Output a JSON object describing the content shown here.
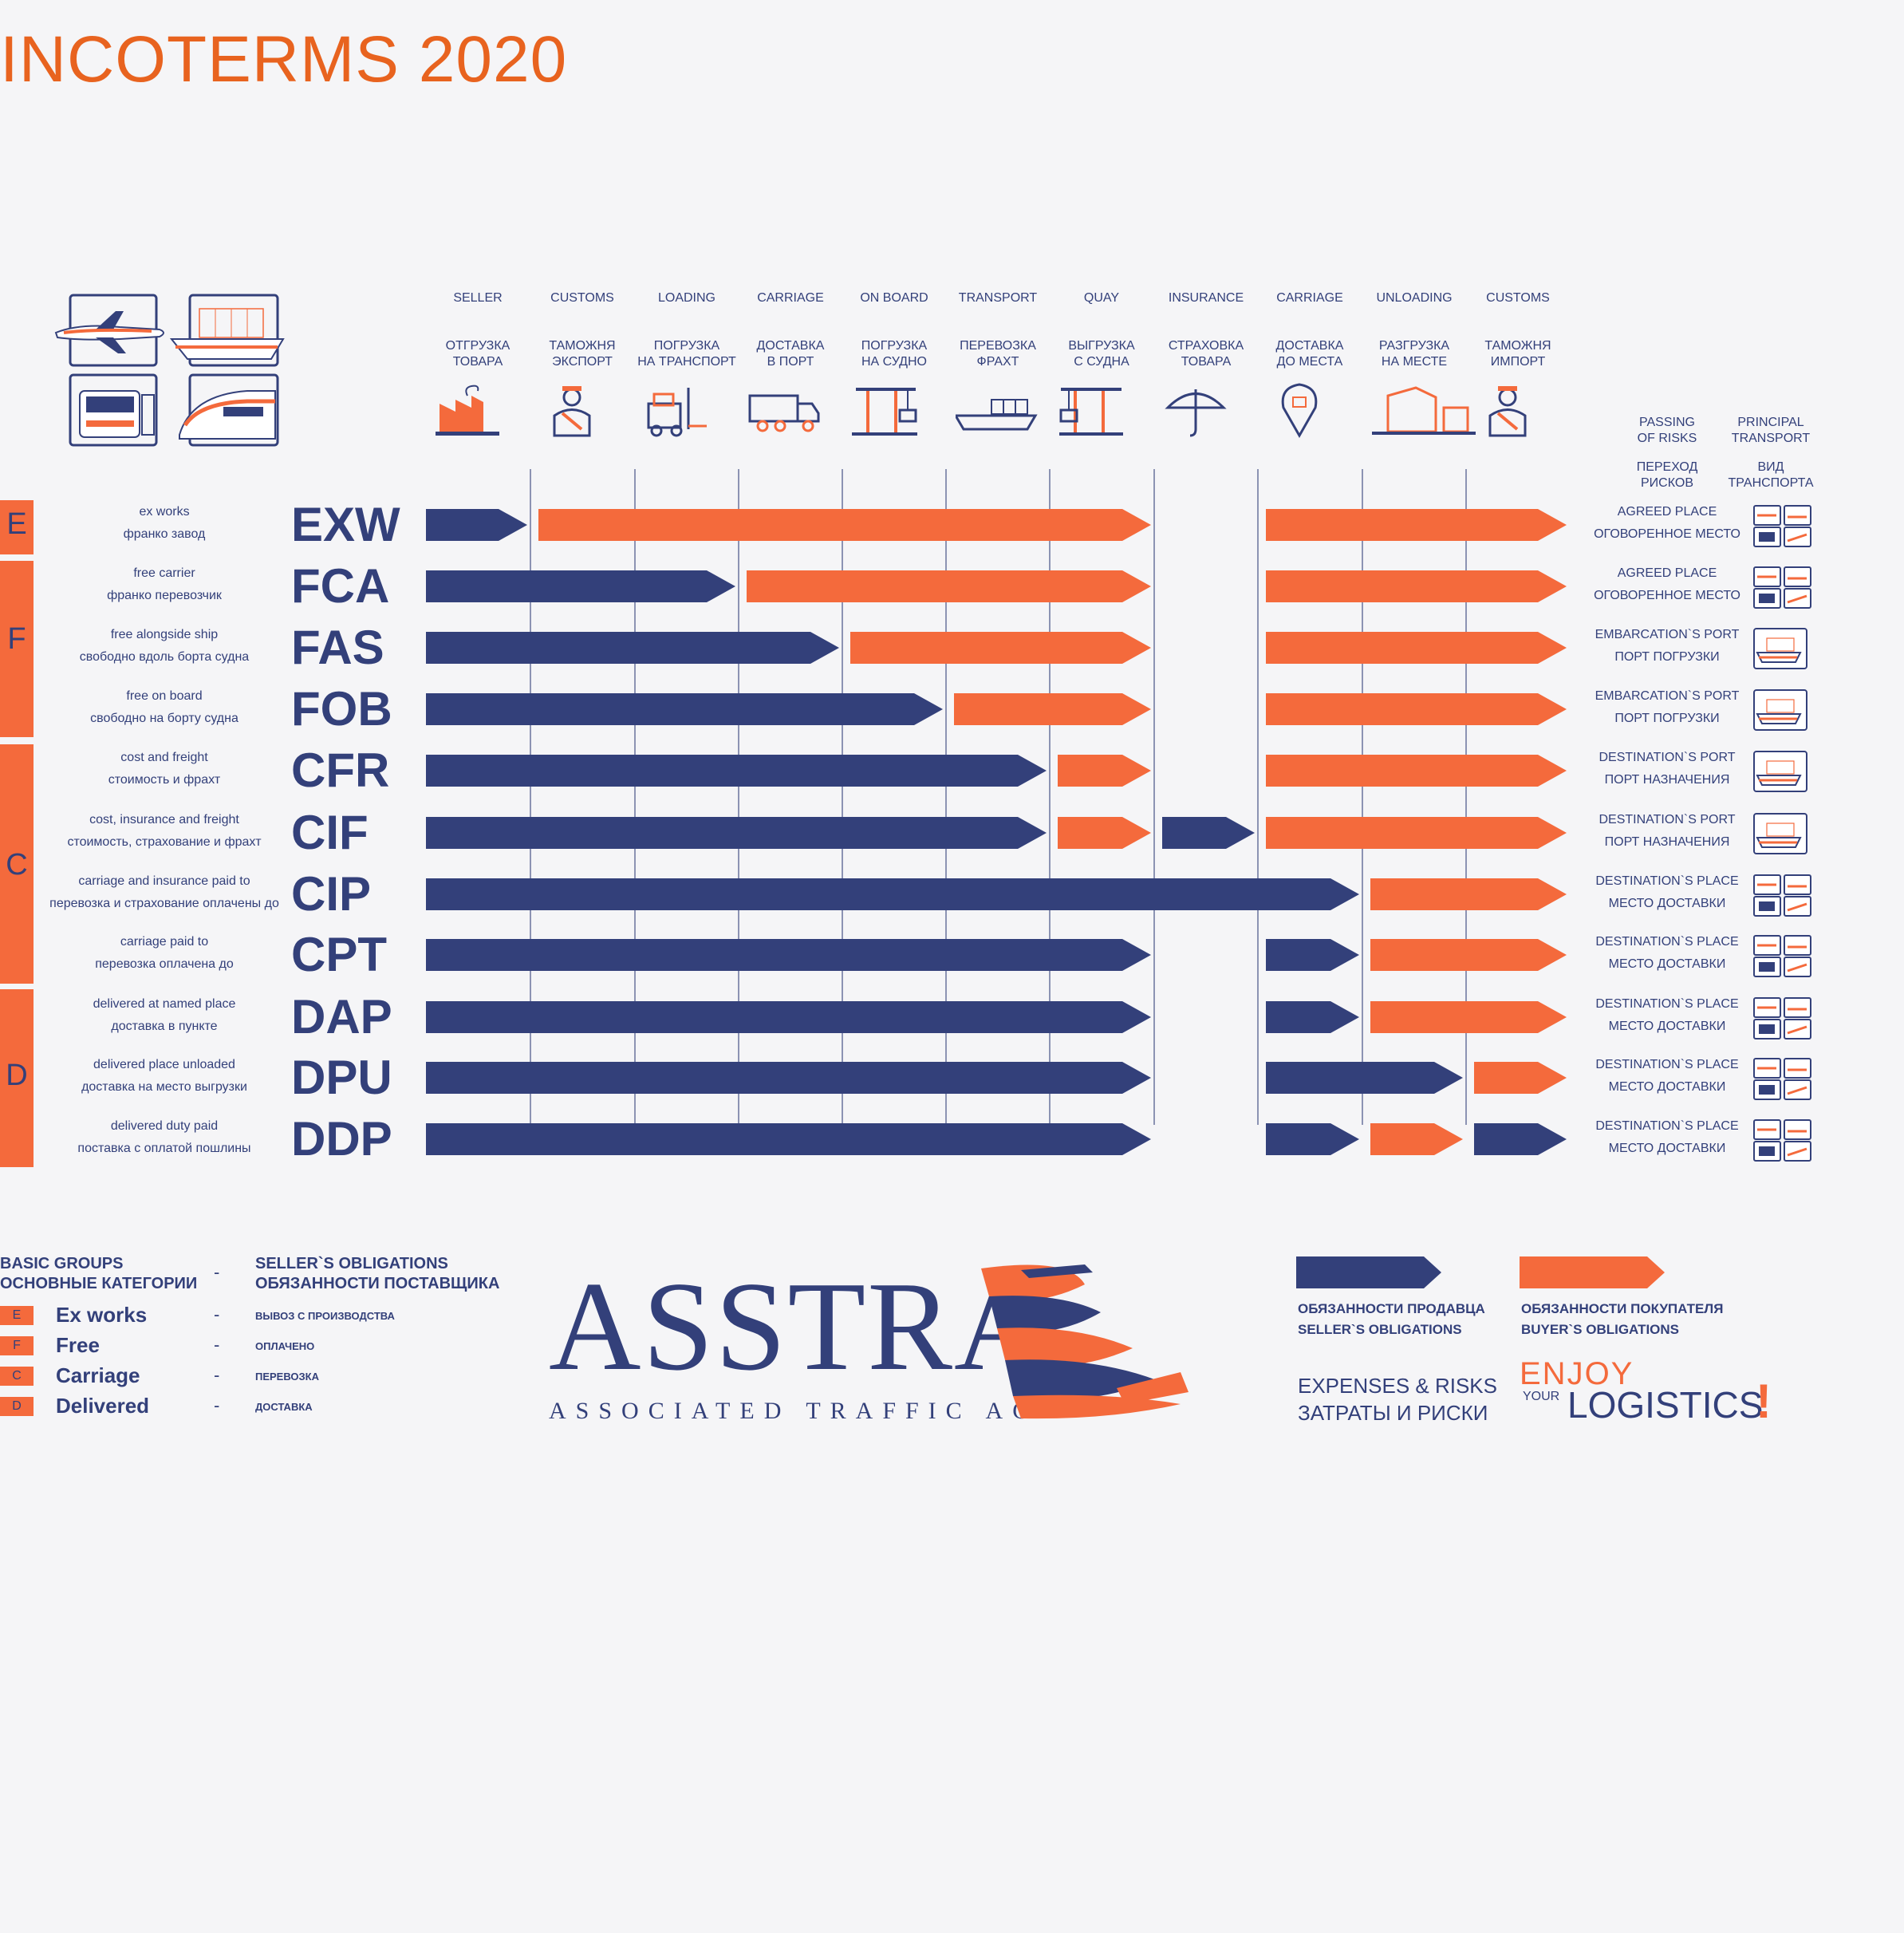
{
  "title": "INCOTERMS 2020",
  "colors": {
    "seller": "#33407a",
    "buyer": "#f46a3c",
    "title": "#e8631f"
  },
  "steps": [
    {
      "en": "SELLER",
      "ru": "ОТГРУЗКА\nТОВАРА",
      "icon": "factory-icon"
    },
    {
      "en": "CUSTOMS",
      "ru": "ТАМОЖНЯ\nЭКСПОРТ",
      "icon": "customs-officer-icon"
    },
    {
      "en": "LOADING",
      "ru": "ПОГРУЗКА\nНА ТРАНСПОРТ",
      "icon": "forklift-icon"
    },
    {
      "en": "CARRIAGE",
      "ru": "ДОСТАВКА\nВ ПОРТ",
      "icon": "truck-icon"
    },
    {
      "en": "ON BOARD",
      "ru": "ПОГРУЗКА\nНА СУДНО",
      "icon": "port-crane-icon"
    },
    {
      "en": "TRANSPORT",
      "ru": "ПЕРЕВОЗКА\nФРАХТ",
      "icon": "container-ship-icon"
    },
    {
      "en": "QUAY",
      "ru": "ВЫГРУЗКА\nС СУДНА",
      "icon": "quay-crane-icon"
    },
    {
      "en": "INSURANCE",
      "ru": "СТРАХОВКА\nТОВАРА",
      "icon": "umbrella-icon"
    },
    {
      "en": "CARRIAGE",
      "ru": "ДОСТАВКА\nДО МЕСТА",
      "icon": "location-pin-icon"
    },
    {
      "en": "UNLOADING",
      "ru": "РАЗГРУЗКА\nНА МЕСТЕ",
      "icon": "warehouse-icon"
    },
    {
      "en": "CUSTOMS",
      "ru": "ТАМОЖНЯ\nИМПОРТ",
      "icon": "customs-officer-icon"
    }
  ],
  "right_headers": {
    "risks_en": "PASSING\nOF RISKS",
    "risks_ru": "ПЕРЕХОД\nРИСКОВ",
    "transport_en": "PRINCIPAL\nTRANSPORT",
    "transport_ru": "ВИД\nТРАНСПОРТА"
  },
  "groups": [
    {
      "letter": "E"
    },
    {
      "letter": "F"
    },
    {
      "letter": "C"
    },
    {
      "letter": "D"
    }
  ],
  "terms": [
    {
      "code": "EXW",
      "en": "ex works",
      "ru": "франко завод",
      "risk_en": "AGREED PLACE",
      "risk_ru": "ОГОВОРЕННОЕ МЕСТО",
      "transport": "any"
    },
    {
      "code": "FCA",
      "en": "free carrier",
      "ru": "франко перевозчик",
      "risk_en": "AGREED PLACE",
      "risk_ru": "ОГОВОРЕННОЕ МЕСТО",
      "transport": "any"
    },
    {
      "code": "FAS",
      "en": "free alongside ship",
      "ru": "свободно вдоль борта судна",
      "risk_en": "EMBARCATION`S PORT",
      "risk_ru": "ПОРТ ПОГРУЗКИ",
      "transport": "sea"
    },
    {
      "code": "FOB",
      "en": "free on board",
      "ru": "свободно на борту судна",
      "risk_en": "EMBARCATION`S PORT",
      "risk_ru": "ПОРТ ПОГРУЗКИ",
      "transport": "sea"
    },
    {
      "code": "CFR",
      "en": "cost and freight",
      "ru": "стоимость и фрахт",
      "risk_en": "DESTINATION`S PORT",
      "risk_ru": "ПОРТ НАЗНАЧЕНИЯ",
      "transport": "sea"
    },
    {
      "code": "CIF",
      "en": "cost, insurance and freight",
      "ru": "стоимость, страхование и фрахт",
      "risk_en": "DESTINATION`S PORT",
      "risk_ru": "ПОРТ НАЗНАЧЕНИЯ",
      "transport": "sea"
    },
    {
      "code": "CIP",
      "en": "carriage and insurance paid to",
      "ru": "перевозка и страхование оплачены до",
      "risk_en": "DESTINATION`S PLACE",
      "risk_ru": "МЕСТО ДОСТАВКИ",
      "transport": "any"
    },
    {
      "code": "CPT",
      "en": "carriage paid to",
      "ru": "перевозка оплачена до",
      "risk_en": "DESTINATION`S PLACE",
      "risk_ru": "МЕСТО ДОСТАВКИ",
      "transport": "any"
    },
    {
      "code": "DAP",
      "en": "delivered at named place",
      "ru": "доставка в пункте",
      "risk_en": "DESTINATION`S PLACE",
      "risk_ru": "МЕСТО ДОСТАВКИ",
      "transport": "any"
    },
    {
      "code": "DPU",
      "en": "delivered place unloaded",
      "ru": "доставка на место выгрузки",
      "risk_en": "DESTINATION`S PLACE",
      "risk_ru": "МЕСТО ДОСТАВКИ",
      "transport": "any"
    },
    {
      "code": "DDP",
      "en": "delivered duty paid",
      "ru": "поставка с оплатой пошлины",
      "risk_en": "DESTINATION`S PLACE",
      "risk_ru": "МЕСТО ДОСТАВКИ",
      "transport": "any"
    }
  ],
  "obligations": [
    [
      [
        "seller",
        0,
        1
      ],
      [
        "buyer",
        1,
        7
      ],
      [
        "buyer",
        8,
        11
      ]
    ],
    [
      [
        "seller",
        0,
        3
      ],
      [
        "buyer",
        3,
        7
      ],
      [
        "buyer",
        8,
        11
      ]
    ],
    [
      [
        "seller",
        0,
        4
      ],
      [
        "buyer",
        4,
        7
      ],
      [
        "buyer",
        8,
        11
      ]
    ],
    [
      [
        "seller",
        0,
        5
      ],
      [
        "buyer",
        5,
        7
      ],
      [
        "buyer",
        8,
        11
      ]
    ],
    [
      [
        "seller",
        0,
        6
      ],
      [
        "buyer",
        6,
        7
      ],
      [
        "buyer",
        8,
        11
      ]
    ],
    [
      [
        "seller",
        0,
        6
      ],
      [
        "buyer",
        6,
        7
      ],
      [
        "seller",
        7,
        8
      ],
      [
        "buyer",
        8,
        11
      ]
    ],
    [
      [
        "seller",
        0,
        9
      ],
      [
        "buyer",
        9,
        11
      ]
    ],
    [
      [
        "seller",
        0,
        7
      ],
      [
        "seller",
        8,
        9
      ],
      [
        "buyer",
        9,
        11
      ]
    ],
    [
      [
        "seller",
        0,
        7
      ],
      [
        "seller",
        8,
        9
      ],
      [
        "buyer",
        9,
        11
      ]
    ],
    [
      [
        "seller",
        0,
        7
      ],
      [
        "seller",
        8,
        10
      ],
      [
        "buyer",
        10,
        11
      ]
    ],
    [
      [
        "seller",
        0,
        7
      ],
      [
        "seller",
        8,
        9
      ],
      [
        "buyer",
        9,
        10
      ],
      [
        "seller",
        10,
        11
      ]
    ]
  ],
  "legend": {
    "basic_en": "BASIC GROUPS",
    "basic_ru": "ОСНОВНЫЕ КАТЕГОРИИ",
    "dash": "-",
    "seller_en": "SELLER`S OBLIGATIONS",
    "seller_ru": "ОБЯЗАННОСТИ ПОСТАВЩИКА",
    "items": [
      {
        "letter": "E",
        "name": "Ex works",
        "ru": "ВЫВОЗ С ПРОИЗВОДСТВА"
      },
      {
        "letter": "F",
        "name": "Free",
        "ru": "ОПЛАЧЕНО"
      },
      {
        "letter": "C",
        "name": "Carriage",
        "ru": "ПЕРЕВОЗКА"
      },
      {
        "letter": "D",
        "name": "Delivered",
        "ru": "ДОСТАВКА"
      }
    ],
    "seller_arrow_ru": "ОБЯЗАННОСТИ ПРОДАВЦА",
    "seller_arrow_en": "SELLER`S OBLIGATIONS",
    "buyer_arrow_ru": "ОБЯЗАННОСТИ ПОКУПАТЕЛЯ",
    "buyer_arrow_en": "BUYER`S OBLIGATIONS",
    "expenses_en": "EXPENSES & RISKS",
    "expenses_ru": "ЗАТРАТЫ И РИСКИ"
  },
  "logo": {
    "brand": "ASSTRA",
    "tagline": "ASSOCIATED TRAFFIC AG"
  },
  "slogan": {
    "enjoy": "ENJOY",
    "your": "YOUR",
    "logistics": "LOGISTICS",
    "bang": "!"
  }
}
